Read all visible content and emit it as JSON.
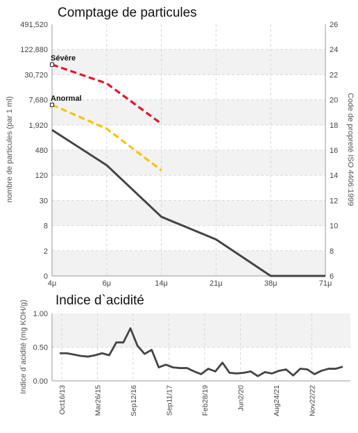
{
  "chart_data": [
    {
      "type": "line",
      "title": "Comptage de particules",
      "ylabel": "nombre de particules (par 1 ml)",
      "y2label": "Code de propreté ISO 4406:1999",
      "x_ticks": [
        "4μ",
        "6μ",
        "14μ",
        "21μ",
        "38μ",
        "71μ"
      ],
      "y_ticks": [
        "0",
        "2",
        "8",
        "30",
        "120",
        "480",
        "1,920",
        "7,680",
        "30,720",
        "122,880",
        "491,520"
      ],
      "y2_ticks": [
        "6",
        "8",
        "10",
        "12",
        "14",
        "16",
        "18",
        "20",
        "22",
        "24",
        "26"
      ],
      "y2lim": [
        6,
        26
      ],
      "grid": true,
      "series": [
        {
          "name": "Sévère",
          "color": "#e8102a",
          "dashed": true,
          "x": [
            "4μ",
            "6μ",
            "14μ"
          ],
          "y2": [
            22.8,
            21.3,
            18.1
          ]
        },
        {
          "name": "Anormal",
          "color": "#f5c400",
          "dashed": true,
          "x": [
            "4μ",
            "6μ",
            "14μ"
          ],
          "y2": [
            19.6,
            17.7,
            14.4
          ]
        },
        {
          "name": "",
          "color": "#444444",
          "dashed": false,
          "x": [
            "4μ",
            "6μ",
            "14μ",
            "21μ",
            "38μ",
            "71μ"
          ],
          "y2": [
            17.6,
            14.8,
            10.7,
            8.9,
            6,
            6
          ]
        }
      ]
    },
    {
      "type": "line",
      "title": "Indice d`acidité",
      "ylabel": "Indice d`acidité (mg KOH/g)",
      "y_ticks": [
        "0.00",
        "0.50",
        "1.00"
      ],
      "ylim": [
        0,
        1
      ],
      "x_ticks": [
        "Oct16/13",
        "Mar26/15",
        "Sep12/16",
        "Sep11/17",
        "Feb28/19",
        "Jun2/20",
        "Aug24/21",
        "Nov22/22"
      ],
      "grid": true,
      "series": [
        {
          "name": "",
          "color": "#444444",
          "values": [
            0.41,
            0.41,
            0.39,
            0.37,
            0.36,
            0.38,
            0.41,
            0.38,
            0.57,
            0.57,
            0.78,
            0.52,
            0.4,
            0.46,
            0.2,
            0.24,
            0.2,
            0.19,
            0.19,
            0.14,
            0.1,
            0.18,
            0.14,
            0.27,
            0.12,
            0.11,
            0.12,
            0.14,
            0.07,
            0.13,
            0.11,
            0.15,
            0.17,
            0.08,
            0.18,
            0.17,
            0.1,
            0.15,
            0.18,
            0.18,
            0.21
          ]
        }
      ]
    }
  ]
}
